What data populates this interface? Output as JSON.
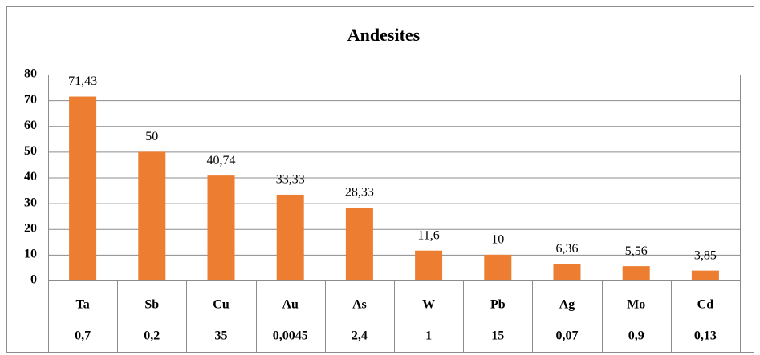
{
  "chart_data": {
    "type": "bar",
    "title": "Andesites",
    "categories": [
      "Ta",
      "Sb",
      "Cu",
      "Au",
      "As",
      "W",
      "Pb",
      "Ag",
      "Mo",
      "Cd"
    ],
    "category_values": [
      "0,7",
      "0,2",
      "35",
      "0,0045",
      "2,4",
      "1",
      "15",
      "0,07",
      "0,9",
      "0,13"
    ],
    "values": [
      71.43,
      50,
      40.74,
      33.33,
      28.33,
      11.6,
      10,
      6.36,
      5.56,
      3.85
    ],
    "value_labels": [
      "71,43",
      "50",
      "40,74",
      "33,33",
      "28,33",
      "11,6",
      "10",
      "6,36",
      "5,56",
      "3,85"
    ],
    "color": "#ed7d31",
    "ylim": [
      0,
      80
    ],
    "yticks": [
      0,
      10,
      20,
      30,
      40,
      50,
      60,
      70,
      80
    ],
    "grid": true
  }
}
